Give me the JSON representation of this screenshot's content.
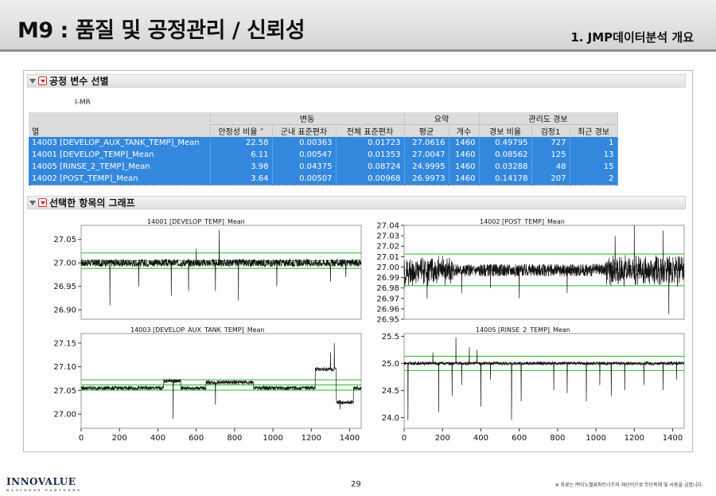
{
  "slide": {
    "title": "M9 : 품질 및 공정관리 / 신뢰성",
    "subtitle": "1. JMP데이터분석 개요",
    "page": "29",
    "logo": "INNOVALUE",
    "logo_tag": "BUSINESS PARTNERS",
    "footnote": "※ 자료는 ㈜이노밸류파트너즈의 재산이므로 무단복제 및 사용을 금합니다."
  },
  "panel": {
    "section1": "공정 변수 선별",
    "method": "I-MR",
    "section2": "선택한 항목의 그래프"
  },
  "table": {
    "group_headers": [
      "변동",
      "요약",
      "관리도 경보"
    ],
    "columns": [
      "열",
      "안정성 비율",
      "군내 표준편차",
      "전체 표준편차",
      "평균",
      "개수",
      "경보 비율",
      "검정1",
      "최근 경보"
    ],
    "rows": [
      [
        "14003 [DEVELOP_AUX_TANK_TEMP]_Mean",
        "22.58",
        "0.00363",
        "0.01723",
        "27.0616",
        "1460",
        "0.49795",
        "727",
        "1"
      ],
      [
        "14001 [DEVELOP_TEMP]_Mean",
        "6.11",
        "0.00547",
        "0.01353",
        "27.0047",
        "1460",
        "0.08562",
        "125",
        "13"
      ],
      [
        "14005 [RINSE_2_TEMP]_Mean",
        "3.98",
        "0.04375",
        "0.08724",
        "24.9995",
        "1460",
        "0.03288",
        "48",
        "15"
      ],
      [
        "14002 [POST_TEMP]_Mean",
        "3.64",
        "0.00507",
        "0.00968",
        "26.9973",
        "1460",
        "0.14178",
        "207",
        "2"
      ]
    ]
  },
  "chart_data": [
    {
      "type": "line",
      "title": "14001 [DEVELOP_TEMP]_Mean",
      "yticks": [
        "26.90",
        "26.95",
        "27.00",
        "27.05"
      ],
      "ylim": [
        26.88,
        27.08
      ],
      "xlim": [
        0,
        1460
      ],
      "center": 27.0047,
      "ucl": 27.0211,
      "lcl": 26.9883,
      "n": 1460,
      "level": 27.0,
      "noise": 0.008,
      "spikes": [
        [
          150,
          26.91
        ],
        [
          300,
          26.95
        ],
        [
          470,
          26.93
        ],
        [
          560,
          26.94
        ],
        [
          700,
          26.94
        ],
        [
          720,
          26.97
        ],
        [
          820,
          26.92
        ],
        [
          1020,
          26.95
        ],
        [
          1300,
          26.96
        ],
        [
          1380,
          26.97
        ]
      ],
      "upspikes": [
        [
          720,
          27.07
        ],
        [
          600,
          27.03
        ]
      ],
      "color_line": "#111111",
      "color_limit": "#22bb22"
    },
    {
      "type": "line",
      "title": "14002 [POST_TEMP]_Mean",
      "yticks": [
        "26.95",
        "26.96",
        "26.97",
        "26.98",
        "26.99",
        "27.00",
        "27.01",
        "27.02",
        "27.03",
        "27.04"
      ],
      "ylim": [
        26.95,
        27.04
      ],
      "xlim": [
        0,
        1460
      ],
      "center": 26.9973,
      "ucl": 27.0125,
      "lcl": 26.9821,
      "n": 1460,
      "level": 26.997,
      "noise": 0.006,
      "spikes": [
        [
          120,
          26.97
        ],
        [
          300,
          26.975
        ],
        [
          450,
          26.98
        ],
        [
          600,
          26.97
        ],
        [
          850,
          26.975
        ],
        [
          1200,
          26.96
        ],
        [
          1380,
          26.955
        ]
      ],
      "upspikes": [
        [
          1100,
          27.03
        ],
        [
          1200,
          27.04
        ],
        [
          1350,
          27.035
        ]
      ],
      "color_line": "#111111",
      "color_limit": "#22bb22"
    },
    {
      "type": "line",
      "title": "14003 [DEVELOP_AUX_TANK_TEMP]_Mean",
      "yticks": [
        "27.00",
        "27.05",
        "27.10",
        "27.15"
      ],
      "ylim": [
        26.97,
        27.17
      ],
      "xlim": [
        0,
        1460
      ],
      "xticks": [
        "0",
        "200",
        "400",
        "600",
        "800",
        "1000",
        "1200",
        "1400"
      ],
      "center": 27.0616,
      "ucl": 27.0725,
      "lcl": 27.0507,
      "n": 1460,
      "level": 27.055,
      "noise": 0.004,
      "spikes": [
        [
          480,
          26.99
        ],
        [
          700,
          27.02
        ],
        [
          1350,
          27.01
        ]
      ],
      "upspikes": [
        [
          1300,
          27.13
        ],
        [
          1320,
          27.15
        ]
      ],
      "color_line": "#111111",
      "color_limit": "#22bb22"
    },
    {
      "type": "line",
      "title": "14005 [RINSE_2_TEMP]_Mean",
      "yticks": [
        "24.0",
        "24.5",
        "25.0",
        "25.5"
      ],
      "ylim": [
        23.8,
        25.55
      ],
      "xlim": [
        0,
        1460
      ],
      "xticks": [
        "0",
        "200",
        "400",
        "600",
        "800",
        "1000",
        "1200",
        "1400"
      ],
      "center": 24.9995,
      "ucl": 25.1307,
      "lcl": 24.8683,
      "n": 1460,
      "level": 25.0,
      "noise": 0.03,
      "spikes": [
        [
          20,
          23.95
        ],
        [
          150,
          24.5
        ],
        [
          180,
          24.1
        ],
        [
          250,
          24.4
        ],
        [
          300,
          24.6
        ],
        [
          400,
          24.2
        ],
        [
          450,
          24.7
        ],
        [
          560,
          23.95
        ],
        [
          610,
          24.3
        ],
        [
          780,
          24.5
        ],
        [
          850,
          24.45
        ],
        [
          950,
          24.3
        ],
        [
          1020,
          24.6
        ],
        [
          1080,
          24.4
        ],
        [
          1150,
          24.5
        ],
        [
          1250,
          24.6
        ],
        [
          1350,
          24.5
        ],
        [
          1420,
          24.7
        ]
      ],
      "upspikes": [
        [
          270,
          25.48
        ],
        [
          340,
          25.3
        ],
        [
          380,
          25.25
        ],
        [
          150,
          25.2
        ]
      ],
      "color_line": "#111111",
      "color_limit": "#22bb22"
    }
  ]
}
